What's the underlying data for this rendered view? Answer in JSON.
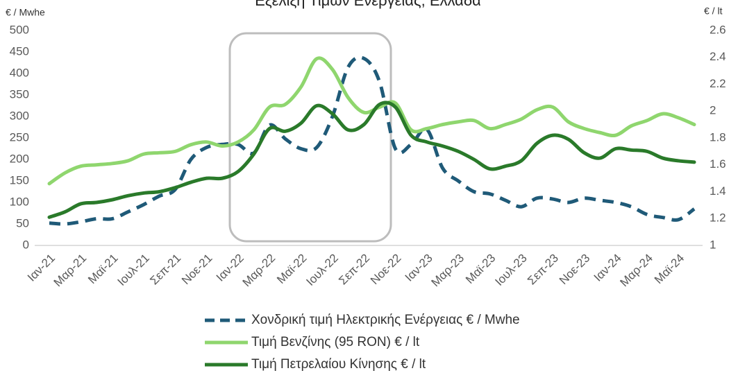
{
  "chart_data": {
    "type": "line",
    "title": "Εξέλιξη Τιμών Ενέργειας, Ελλάδα",
    "y_label": "€ / Mwhe",
    "y2_label": "€ / lt",
    "categories": [
      "Ιαν-21",
      null,
      "Μαρ-21",
      null,
      "Μαϊ-21",
      null,
      "Ιουλ-21",
      null,
      "Σεπ-21",
      null,
      "Νοε-21",
      null,
      "Ιαν-22",
      null,
      "Μαρ-22",
      null,
      "Μαϊ-22",
      null,
      "Ιουλ-22",
      null,
      "Σεπ-22",
      null,
      "Νοε-22",
      null,
      "Ιαν-23",
      null,
      "Μαρ-23",
      null,
      "Μαϊ-23",
      null,
      "Ιουλ-23",
      null,
      "Σεπ-23",
      null,
      "Νοε-23",
      null,
      "Ιαν-24",
      null,
      "Μαρ-24",
      null,
      "Μαϊ-24",
      null
    ],
    "series": [
      {
        "name": "Χονδρική τιμή Ηλεκτρικής Ενέργειας  € / Mwhe",
        "color": "#1f5a78",
        "dashed": true,
        "values": [
          52,
          50,
          55,
          62,
          62,
          78,
          95,
          115,
          130,
          200,
          228,
          235,
          235,
          215,
          280,
          248,
          225,
          228,
          300,
          415,
          435,
          380,
          225,
          235,
          270,
          180,
          150,
          125,
          120,
          105,
          90,
          110,
          108,
          100,
          110,
          105,
          100,
          90,
          72,
          65,
          60,
          85
        ]
      },
      {
        "name": "Τιμή Βενζίνης (95 RON) € / lt",
        "color": "#8fd66e",
        "axis": "y2",
        "values": [
          1.46,
          1.54,
          1.59,
          1.6,
          1.61,
          1.63,
          1.68,
          1.69,
          1.7,
          1.75,
          1.77,
          1.74,
          1.77,
          1.86,
          2.03,
          2.05,
          2.18,
          2.39,
          2.31,
          2.1,
          1.99,
          2.03,
          2.06,
          1.86,
          1.87,
          1.9,
          1.92,
          1.93,
          1.87,
          1.9,
          1.94,
          2.01,
          2.03,
          1.92,
          1.87,
          1.84,
          1.82,
          1.89,
          1.93,
          1.98,
          1.95,
          1.9
        ]
      },
      {
        "name": "Τιμή Πετρελαίου Κίνησης € / lt",
        "color": "#2a7a2a",
        "axis": "y2",
        "values": [
          1.21,
          1.25,
          1.31,
          1.32,
          1.34,
          1.37,
          1.39,
          1.4,
          1.43,
          1.47,
          1.5,
          1.5,
          1.55,
          1.68,
          1.87,
          1.85,
          1.91,
          2.04,
          1.98,
          1.86,
          1.9,
          2.05,
          2.03,
          1.82,
          1.77,
          1.74,
          1.7,
          1.64,
          1.57,
          1.59,
          1.63,
          1.76,
          1.82,
          1.79,
          1.69,
          1.65,
          1.72,
          1.71,
          1.7,
          1.65,
          1.63,
          1.62
        ]
      }
    ],
    "ylim": [
      0,
      500
    ],
    "yticks": [
      0,
      50,
      100,
      150,
      200,
      250,
      300,
      350,
      400,
      450,
      500
    ],
    "y2lim": [
      1,
      2.6
    ],
    "y2ticks": [
      1,
      1.2,
      1.4,
      1.6,
      1.8,
      2,
      2.2,
      2.4,
      2.6
    ],
    "grid": false
  }
}
